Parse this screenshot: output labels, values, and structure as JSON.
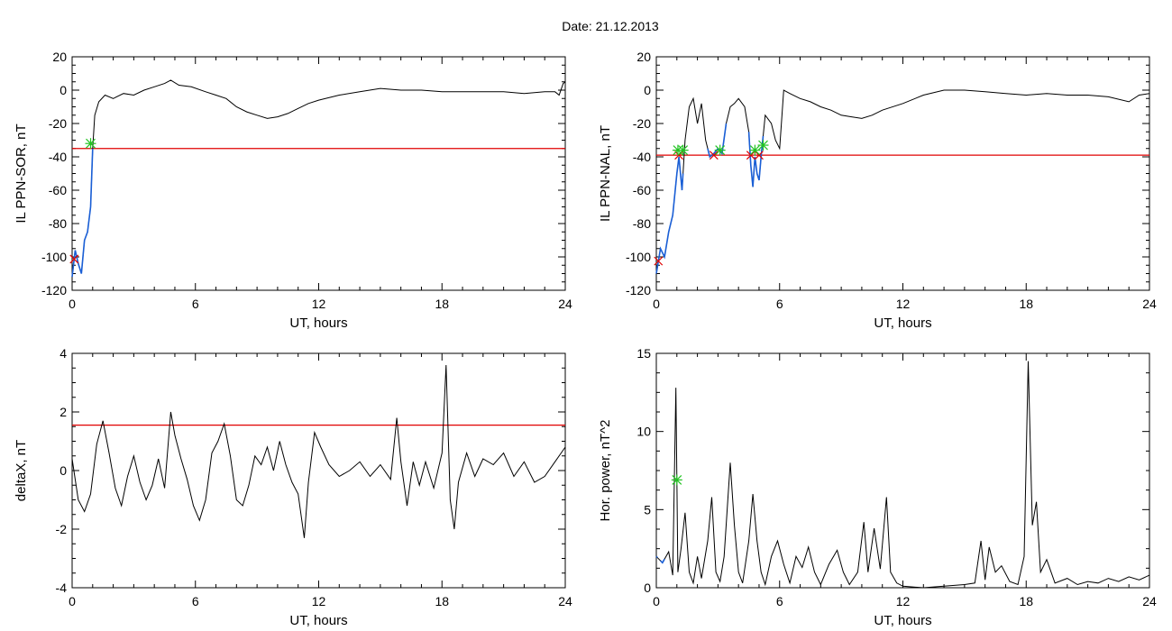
{
  "title": "Date:  21.12.2013",
  "chart_data": [
    {
      "type": "line",
      "xlabel": "UT, hours",
      "ylabel": "IL PPN-SOR, nT",
      "xlim": [
        0,
        24
      ],
      "ylim": [
        -120,
        20
      ],
      "xticks": [
        0,
        6,
        12,
        18,
        24
      ],
      "yticks": [
        -120,
        -100,
        -80,
        -60,
        -40,
        -20,
        0,
        20
      ],
      "threshold": -35,
      "colors": {
        "trace": "#000000",
        "highlight": "#1a5fd6",
        "threshold": "#e00000",
        "marker_start": "#e00000",
        "marker_end": "#22c322"
      },
      "series": [
        {
          "values": [
            [
              0,
              -112
            ],
            [
              0.15,
              -96
            ],
            [
              0.3,
              -104
            ],
            [
              0.45,
              -110
            ],
            [
              0.6,
              -90
            ],
            [
              0.75,
              -85
            ],
            [
              0.9,
              -70
            ],
            [
              1.0,
              -35
            ],
            [
              1.1,
              -15
            ],
            [
              1.3,
              -7
            ],
            [
              1.6,
              -3
            ],
            [
              2,
              -5
            ],
            [
              2.5,
              -2
            ],
            [
              3,
              -3
            ],
            [
              3.5,
              0
            ],
            [
              4,
              2
            ],
            [
              4.5,
              4
            ],
            [
              4.8,
              6
            ],
            [
              5.2,
              3
            ],
            [
              5.8,
              2
            ],
            [
              6.5,
              -1
            ],
            [
              7,
              -3
            ],
            [
              7.5,
              -5
            ],
            [
              8,
              -10
            ],
            [
              8.5,
              -13
            ],
            [
              9,
              -15
            ],
            [
              9.5,
              -17
            ],
            [
              10,
              -16
            ],
            [
              10.5,
              -14
            ],
            [
              11,
              -11
            ],
            [
              11.5,
              -8
            ],
            [
              12,
              -6
            ],
            [
              13,
              -3
            ],
            [
              14,
              -1
            ],
            [
              15,
              1
            ],
            [
              16,
              0
            ],
            [
              17,
              0
            ],
            [
              18,
              -1
            ],
            [
              19,
              -1
            ],
            [
              20,
              -1
            ],
            [
              21,
              -1
            ],
            [
              22,
              -2
            ],
            [
              23,
              -1
            ],
            [
              23.5,
              -1
            ],
            [
              23.7,
              -3
            ],
            [
              23.9,
              4
            ],
            [
              24,
              5
            ]
          ]
        }
      ],
      "highlight_ranges": [
        [
          0,
          1.0
        ]
      ],
      "markers_start_x": [
        0.1
      ],
      "markers_end_x": [
        0.9
      ]
    },
    {
      "type": "line",
      "xlabel": "UT, hours",
      "ylabel": "IL PPN-NAL, nT",
      "xlim": [
        0,
        24
      ],
      "ylim": [
        -120,
        20
      ],
      "xticks": [
        0,
        6,
        12,
        18,
        24
      ],
      "yticks": [
        -120,
        -100,
        -80,
        -60,
        -40,
        -20,
        0,
        20
      ],
      "threshold": -39,
      "colors": {
        "trace": "#000000",
        "highlight": "#1a5fd6",
        "threshold": "#e00000",
        "marker_start": "#e00000",
        "marker_end": "#22c322"
      },
      "series": [
        {
          "values": [
            [
              0,
              -110
            ],
            [
              0.2,
              -95
            ],
            [
              0.4,
              -100
            ],
            [
              0.6,
              -85
            ],
            [
              0.8,
              -75
            ],
            [
              1.0,
              -50
            ],
            [
              1.1,
              -40
            ],
            [
              1.25,
              -60
            ],
            [
              1.4,
              -30
            ],
            [
              1.6,
              -10
            ],
            [
              1.8,
              -5
            ],
            [
              2.0,
              -20
            ],
            [
              2.2,
              -8
            ],
            [
              2.4,
              -30
            ],
            [
              2.6,
              -40
            ],
            [
              2.8,
              -38
            ],
            [
              3.0,
              -35
            ],
            [
              3.2,
              -38
            ],
            [
              3.4,
              -20
            ],
            [
              3.6,
              -10
            ],
            [
              3.8,
              -8
            ],
            [
              4.0,
              -5
            ],
            [
              4.3,
              -10
            ],
            [
              4.5,
              -25
            ],
            [
              4.6,
              -45
            ],
            [
              4.7,
              -58
            ],
            [
              4.8,
              -40
            ],
            [
              4.9,
              -50
            ],
            [
              5.0,
              -54
            ],
            [
              5.1,
              -40
            ],
            [
              5.3,
              -15
            ],
            [
              5.6,
              -20
            ],
            [
              5.8,
              -30
            ],
            [
              6.0,
              -35
            ],
            [
              6.2,
              0
            ],
            [
              6.5,
              -2
            ],
            [
              7,
              -5
            ],
            [
              7.5,
              -7
            ],
            [
              8,
              -10
            ],
            [
              8.5,
              -12
            ],
            [
              9,
              -15
            ],
            [
              9.5,
              -16
            ],
            [
              10,
              -17
            ],
            [
              10.5,
              -15
            ],
            [
              11,
              -12
            ],
            [
              12,
              -8
            ],
            [
              13,
              -3
            ],
            [
              14,
              0
            ],
            [
              15,
              0
            ],
            [
              16,
              -1
            ],
            [
              17,
              -2
            ],
            [
              18,
              -3
            ],
            [
              19,
              -2
            ],
            [
              20,
              -3
            ],
            [
              21,
              -3
            ],
            [
              22,
              -4
            ],
            [
              23,
              -7
            ],
            [
              23.5,
              -3
            ],
            [
              24,
              -2
            ]
          ]
        }
      ],
      "highlight_ranges": [
        [
          0,
          1.3
        ],
        [
          2.5,
          3.4
        ],
        [
          4.5,
          5.2
        ]
      ],
      "markers_start_x": [
        0.1,
        1.1,
        2.8,
        4.6,
        5.0
      ],
      "markers_end_x": [
        1.05,
        1.3,
        3.1,
        4.8,
        5.2
      ]
    },
    {
      "type": "line",
      "xlabel": "UT, hours",
      "ylabel": "deltaX, nT",
      "xlim": [
        0,
        24
      ],
      "ylim": [
        -4,
        4
      ],
      "xticks": [
        0,
        6,
        12,
        18,
        24
      ],
      "yticks": [
        -4,
        -2,
        0,
        2,
        4
      ],
      "threshold": 1.55,
      "colors": {
        "trace": "#000000",
        "threshold": "#e00000"
      },
      "series": [
        {
          "values": [
            [
              0,
              0.4
            ],
            [
              0.3,
              -1.0
            ],
            [
              0.6,
              -1.4
            ],
            [
              0.9,
              -0.8
            ],
            [
              1.2,
              0.9
            ],
            [
              1.5,
              1.7
            ],
            [
              1.8,
              0.6
            ],
            [
              2.1,
              -0.6
            ],
            [
              2.4,
              -1.2
            ],
            [
              2.7,
              -0.2
            ],
            [
              3.0,
              0.5
            ],
            [
              3.3,
              -0.4
            ],
            [
              3.6,
              -1.0
            ],
            [
              3.9,
              -0.5
            ],
            [
              4.2,
              0.4
            ],
            [
              4.5,
              -0.6
            ],
            [
              4.8,
              2.0
            ],
            [
              5.0,
              1.2
            ],
            [
              5.3,
              0.4
            ],
            [
              5.6,
              -0.3
            ],
            [
              5.9,
              -1.2
            ],
            [
              6.2,
              -1.7
            ],
            [
              6.5,
              -1.0
            ],
            [
              6.8,
              0.6
            ],
            [
              7.1,
              1.0
            ],
            [
              7.4,
              1.6
            ],
            [
              7.7,
              0.5
            ],
            [
              8.0,
              -1.0
            ],
            [
              8.3,
              -1.2
            ],
            [
              8.6,
              -0.5
            ],
            [
              8.9,
              0.5
            ],
            [
              9.2,
              0.2
            ],
            [
              9.5,
              0.8
            ],
            [
              9.8,
              0.0
            ],
            [
              10.1,
              1.0
            ],
            [
              10.4,
              0.2
            ],
            [
              10.7,
              -0.4
            ],
            [
              11.0,
              -0.8
            ],
            [
              11.3,
              -2.3
            ],
            [
              11.5,
              -0.4
            ],
            [
              11.8,
              1.3
            ],
            [
              12.1,
              0.8
            ],
            [
              12.5,
              0.2
            ],
            [
              13,
              -0.2
            ],
            [
              13.5,
              0.0
            ],
            [
              14,
              0.3
            ],
            [
              14.5,
              -0.2
            ],
            [
              15,
              0.2
            ],
            [
              15.5,
              -0.3
            ],
            [
              15.8,
              1.8
            ],
            [
              16.0,
              0.3
            ],
            [
              16.3,
              -1.2
            ],
            [
              16.6,
              0.3
            ],
            [
              16.9,
              -0.5
            ],
            [
              17.2,
              0.3
            ],
            [
              17.6,
              -0.6
            ],
            [
              18.0,
              0.6
            ],
            [
              18.2,
              3.6
            ],
            [
              18.4,
              -1.0
            ],
            [
              18.6,
              -2.0
            ],
            [
              18.8,
              -0.4
            ],
            [
              19.2,
              0.6
            ],
            [
              19.6,
              -0.2
            ],
            [
              20.0,
              0.4
            ],
            [
              20.5,
              0.2
            ],
            [
              21,
              0.6
            ],
            [
              21.5,
              -0.2
            ],
            [
              22,
              0.3
            ],
            [
              22.5,
              -0.4
            ],
            [
              23,
              -0.2
            ],
            [
              23.5,
              0.3
            ],
            [
              24,
              0.8
            ]
          ]
        }
      ]
    },
    {
      "type": "line",
      "xlabel": "UT, hours",
      "ylabel": "Hor. power, nT^2",
      "xlim": [
        0,
        24
      ],
      "ylim": [
        0,
        15
      ],
      "xticks": [
        0,
        6,
        12,
        18,
        24
      ],
      "yticks": [
        0,
        5,
        10,
        15
      ],
      "colors": {
        "trace": "#000000",
        "highlight": "#1a5fd6",
        "marker_end": "#22c322"
      },
      "series": [
        {
          "values": [
            [
              0,
              2.0
            ],
            [
              0.3,
              1.6
            ],
            [
              0.6,
              2.3
            ],
            [
              0.8,
              0.8
            ],
            [
              0.95,
              12.8
            ],
            [
              1.05,
              1.0
            ],
            [
              1.2,
              2.5
            ],
            [
              1.4,
              4.8
            ],
            [
              1.6,
              1.0
            ],
            [
              1.8,
              0.3
            ],
            [
              2.0,
              2.0
            ],
            [
              2.2,
              0.6
            ],
            [
              2.5,
              3.0
            ],
            [
              2.7,
              5.8
            ],
            [
              2.9,
              1.0
            ],
            [
              3.1,
              0.4
            ],
            [
              3.3,
              2.0
            ],
            [
              3.6,
              8.0
            ],
            [
              3.8,
              4.0
            ],
            [
              4.0,
              1.0
            ],
            [
              4.2,
              0.3
            ],
            [
              4.5,
              3.0
            ],
            [
              4.7,
              6.0
            ],
            [
              4.9,
              3.0
            ],
            [
              5.1,
              1.0
            ],
            [
              5.3,
              0.2
            ],
            [
              5.6,
              2.0
            ],
            [
              5.9,
              3.0
            ],
            [
              6.2,
              1.5
            ],
            [
              6.5,
              0.3
            ],
            [
              6.8,
              2.0
            ],
            [
              7.1,
              1.3
            ],
            [
              7.4,
              2.6
            ],
            [
              7.7,
              1.0
            ],
            [
              8.0,
              0.2
            ],
            [
              8.4,
              1.5
            ],
            [
              8.8,
              2.4
            ],
            [
              9.1,
              1.0
            ],
            [
              9.4,
              0.2
            ],
            [
              9.8,
              1.0
            ],
            [
              10.1,
              4.2
            ],
            [
              10.3,
              1.0
            ],
            [
              10.6,
              3.8
            ],
            [
              10.9,
              1.2
            ],
            [
              11.2,
              5.8
            ],
            [
              11.4,
              1.0
            ],
            [
              11.7,
              0.3
            ],
            [
              12,
              0.1
            ],
            [
              13,
              0.0
            ],
            [
              14,
              0.1
            ],
            [
              15,
              0.2
            ],
            [
              15.5,
              0.3
            ],
            [
              15.8,
              3.0
            ],
            [
              16.0,
              0.5
            ],
            [
              16.2,
              2.6
            ],
            [
              16.5,
              1.0
            ],
            [
              16.8,
              1.4
            ],
            [
              17.2,
              0.4
            ],
            [
              17.6,
              0.2
            ],
            [
              17.9,
              2.0
            ],
            [
              18.1,
              14.5
            ],
            [
              18.3,
              4.0
            ],
            [
              18.5,
              5.5
            ],
            [
              18.7,
              1.0
            ],
            [
              19.0,
              1.8
            ],
            [
              19.4,
              0.3
            ],
            [
              20.0,
              0.6
            ],
            [
              20.5,
              0.2
            ],
            [
              21,
              0.4
            ],
            [
              21.5,
              0.3
            ],
            [
              22,
              0.6
            ],
            [
              22.5,
              0.4
            ],
            [
              23,
              0.7
            ],
            [
              23.5,
              0.5
            ],
            [
              24,
              0.8
            ]
          ]
        }
      ],
      "highlight_ranges": [
        [
          0,
          0.05
        ],
        [
          0.2,
          0.4
        ]
      ],
      "markers_end_x": [
        1.0
      ]
    }
  ]
}
